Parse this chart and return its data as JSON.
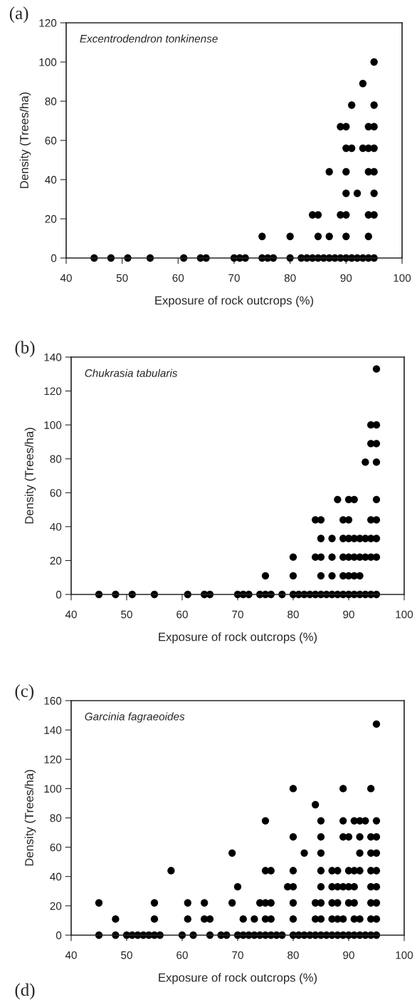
{
  "chart_data": [
    {
      "type": "scatter",
      "title": "(a)",
      "xlabel": "Exposure of rock outcrops (%)",
      "ylabel": "Density (Trees/ha)",
      "annotations": [
        "Excentrodendron tonkinense"
      ],
      "marker": "circle",
      "xlim": [
        40,
        100
      ],
      "xticks": [
        40,
        50,
        60,
        70,
        80,
        90,
        100
      ],
      "ylim": [
        0,
        120
      ],
      "yticks": [
        0,
        20,
        40,
        60,
        80,
        100,
        120
      ],
      "series": [
        {
          "color": "#000000",
          "x": [
            45,
            48,
            51,
            55,
            61,
            64,
            65,
            70,
            71,
            72,
            75,
            76,
            77,
            80,
            82,
            83,
            84,
            85,
            86,
            87,
            88,
            89,
            90,
            91,
            92,
            93,
            94,
            95,
            75,
            80,
            85,
            87,
            90,
            94,
            84,
            85,
            89,
            90,
            94,
            95,
            90,
            92,
            95,
            87,
            90,
            94,
            95,
            90,
            91,
            93,
            94,
            95,
            89,
            90,
            94,
            95,
            91,
            95,
            93,
            95
          ],
          "values": [
            0,
            0,
            0,
            0,
            0,
            0,
            0,
            0,
            0,
            0,
            0,
            0,
            0,
            0,
            0,
            0,
            0,
            0,
            0,
            0,
            0,
            0,
            0,
            0,
            0,
            0,
            0,
            0,
            11,
            11,
            11,
            11,
            11,
            11,
            22,
            22,
            22,
            22,
            22,
            22,
            33,
            33,
            33,
            44,
            44,
            44,
            44,
            56,
            56,
            56,
            56,
            56,
            67,
            67,
            67,
            67,
            78,
            78,
            89,
            100
          ]
        }
      ]
    },
    {
      "type": "scatter",
      "title": "(b)",
      "xlabel": "Exposure of rock outcrops (%)",
      "ylabel": "Density (Trees/ha)",
      "annotations": [
        "Chukrasia tabularis"
      ],
      "marker": "circle",
      "xlim": [
        40,
        100
      ],
      "xticks": [
        40,
        50,
        60,
        70,
        80,
        90,
        100
      ],
      "ylim": [
        0,
        140
      ],
      "yticks": [
        0,
        20,
        40,
        60,
        80,
        100,
        120,
        140
      ],
      "series": [
        {
          "color": "#000000",
          "x": [
            45,
            48,
            51,
            55,
            61,
            64,
            65,
            70,
            71,
            72,
            74,
            75,
            76,
            78,
            80,
            81,
            82,
            83,
            84,
            85,
            86,
            87,
            88,
            89,
            90,
            91,
            92,
            93,
            94,
            95,
            75,
            80,
            85,
            87,
            89,
            90,
            91,
            92,
            80,
            84,
            85,
            87,
            89,
            90,
            91,
            92,
            93,
            94,
            95,
            85,
            87,
            89,
            90,
            91,
            92,
            93,
            94,
            95,
            84,
            85,
            89,
            90,
            94,
            95,
            88,
            90,
            91,
            95,
            93,
            95,
            94,
            95,
            94,
            95,
            95
          ],
          "values": [
            0,
            0,
            0,
            0,
            0,
            0,
            0,
            0,
            0,
            0,
            0,
            0,
            0,
            0,
            0,
            0,
            0,
            0,
            0,
            0,
            0,
            0,
            0,
            0,
            0,
            0,
            0,
            0,
            0,
            0,
            11,
            11,
            11,
            11,
            11,
            11,
            11,
            11,
            22,
            22,
            22,
            22,
            22,
            22,
            22,
            22,
            22,
            22,
            22,
            33,
            33,
            33,
            33,
            33,
            33,
            33,
            33,
            33,
            44,
            44,
            44,
            44,
            44,
            44,
            56,
            56,
            56,
            56,
            78,
            78,
            89,
            89,
            100,
            100,
            133
          ]
        }
      ]
    },
    {
      "type": "scatter",
      "title": "(c)",
      "xlabel": "Exposure of rock outcrops (%)",
      "ylabel": "Density (Trees/ha)",
      "annotations": [
        "Garcinia fagraeoides",
        "(d)"
      ],
      "marker": "circle",
      "xlim": [
        40,
        100
      ],
      "xticks": [
        40,
        50,
        60,
        70,
        80,
        90,
        100
      ],
      "ylim": [
        0,
        160
      ],
      "yticks": [
        0,
        20,
        40,
        60,
        80,
        100,
        120,
        140,
        160
      ],
      "series": [
        {
          "color": "#000000",
          "x": [
            45,
            48,
            50,
            51,
            52,
            53,
            54,
            55,
            56,
            60,
            62,
            65,
            67,
            68,
            70,
            71,
            72,
            73,
            74,
            75,
            76,
            77,
            78,
            80,
            81,
            82,
            83,
            84,
            85,
            86,
            87,
            88,
            89,
            90,
            91,
            92,
            93,
            94,
            95,
            48,
            55,
            61,
            64,
            65,
            71,
            73,
            75,
            76,
            80,
            84,
            85,
            87,
            88,
            89,
            91,
            92,
            94,
            95,
            45,
            55,
            61,
            64,
            69,
            74,
            75,
            76,
            80,
            84,
            85,
            87,
            88,
            90,
            91,
            94,
            95,
            70,
            79,
            80,
            85,
            87,
            88,
            89,
            90,
            91,
            94,
            95,
            58,
            75,
            76,
            80,
            85,
            87,
            88,
            90,
            91,
            92,
            94,
            95,
            69,
            82,
            85,
            92,
            94,
            95,
            80,
            85,
            89,
            90,
            92,
            94,
            95,
            75,
            85,
            89,
            91,
            92,
            93,
            95,
            84,
            80,
            89,
            94,
            95
          ],
          "values": [
            0,
            0,
            0,
            0,
            0,
            0,
            0,
            0,
            0,
            0,
            0,
            0,
            0,
            0,
            0,
            0,
            0,
            0,
            0,
            0,
            0,
            0,
            0,
            0,
            0,
            0,
            0,
            0,
            0,
            0,
            0,
            0,
            0,
            0,
            0,
            0,
            0,
            0,
            0,
            11,
            11,
            11,
            11,
            11,
            11,
            11,
            11,
            11,
            11,
            11,
            11,
            11,
            11,
            11,
            11,
            11,
            11,
            11,
            22,
            22,
            22,
            22,
            22,
            22,
            22,
            22,
            22,
            22,
            22,
            22,
            22,
            22,
            22,
            22,
            22,
            33,
            33,
            33,
            33,
            33,
            33,
            33,
            33,
            33,
            33,
            33,
            44,
            44,
            44,
            44,
            44,
            44,
            44,
            44,
            44,
            44,
            44,
            44,
            56,
            56,
            56,
            56,
            56,
            56,
            67,
            67,
            67,
            67,
            67,
            67,
            67,
            78,
            78,
            78,
            78,
            78,
            78,
            78,
            89,
            100,
            100,
            100,
            144
          ]
        }
      ]
    }
  ]
}
